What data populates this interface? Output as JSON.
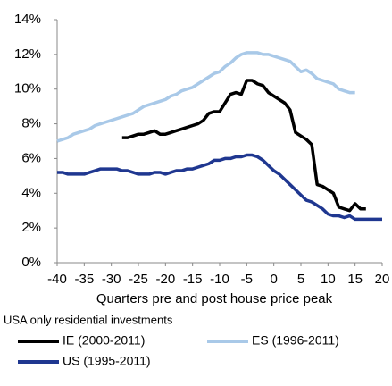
{
  "chart_data": {
    "type": "line",
    "xlabel": "Quarters pre and post house price peak",
    "note": "USA only residential investments",
    "x": [
      -40,
      -39,
      -38,
      -37,
      -36,
      -35,
      -34,
      -33,
      -32,
      -31,
      -30,
      -29,
      -28,
      -27,
      -26,
      -25,
      -24,
      -23,
      -22,
      -21,
      -20,
      -19,
      -18,
      -17,
      -16,
      -15,
      -14,
      -13,
      -12,
      -11,
      -10,
      -9,
      -8,
      -7,
      -6,
      -5,
      -4,
      -3,
      -2,
      -1,
      0,
      1,
      2,
      3,
      4,
      5,
      6,
      7,
      8,
      9,
      10,
      11,
      12,
      13,
      14,
      15,
      16,
      17,
      18,
      19,
      20
    ],
    "series": [
      {
        "name": "IE (2000-2011)",
        "color": "#000000",
        "values": [
          null,
          null,
          null,
          null,
          null,
          null,
          null,
          null,
          null,
          null,
          null,
          null,
          7.2,
          7.2,
          7.3,
          7.4,
          7.4,
          7.5,
          7.6,
          7.4,
          7.4,
          7.5,
          7.6,
          7.7,
          7.8,
          7.9,
          8.0,
          8.2,
          8.6,
          8.7,
          8.7,
          9.2,
          9.7,
          9.8,
          9.7,
          10.5,
          10.5,
          10.3,
          10.2,
          9.8,
          9.6,
          9.4,
          9.2,
          8.8,
          7.5,
          7.3,
          7.1,
          6.8,
          4.5,
          4.4,
          4.2,
          4.0,
          3.2,
          3.1,
          3.0,
          3.4,
          3.1,
          3.1,
          null,
          null,
          null
        ]
      },
      {
        "name": "ES (1996-2011)",
        "color": "#a9c9e8",
        "values": [
          7.0,
          7.1,
          7.2,
          7.4,
          7.5,
          7.6,
          7.7,
          7.9,
          8.0,
          8.1,
          8.2,
          8.3,
          8.4,
          8.5,
          8.6,
          8.8,
          9.0,
          9.1,
          9.2,
          9.3,
          9.4,
          9.6,
          9.7,
          9.9,
          10.0,
          10.1,
          10.3,
          10.5,
          10.7,
          10.9,
          11.0,
          11.3,
          11.5,
          11.8,
          12.0,
          12.1,
          12.1,
          12.1,
          12.0,
          12.0,
          11.9,
          11.8,
          11.7,
          11.6,
          11.3,
          11.0,
          11.1,
          10.9,
          10.6,
          10.5,
          10.4,
          10.3,
          10.0,
          9.9,
          9.8,
          9.8,
          null,
          null,
          null,
          null,
          null
        ]
      },
      {
        "name": "US (1995-2011)",
        "color": "#1f3790",
        "values": [
          5.2,
          5.2,
          5.1,
          5.1,
          5.1,
          5.1,
          5.2,
          5.3,
          5.4,
          5.4,
          5.4,
          5.4,
          5.3,
          5.3,
          5.2,
          5.1,
          5.1,
          5.1,
          5.2,
          5.2,
          5.1,
          5.2,
          5.3,
          5.3,
          5.4,
          5.4,
          5.5,
          5.6,
          5.7,
          5.9,
          5.9,
          6.0,
          6.0,
          6.1,
          6.1,
          6.2,
          6.2,
          6.1,
          5.9,
          5.6,
          5.3,
          5.1,
          4.8,
          4.5,
          4.2,
          3.9,
          3.6,
          3.5,
          3.3,
          3.1,
          2.8,
          2.7,
          2.7,
          2.6,
          2.7,
          2.5,
          2.5,
          2.5,
          2.5,
          2.5,
          2.5
        ]
      }
    ],
    "xlim": [
      -40,
      20
    ],
    "xticks": [
      -40,
      -35,
      -30,
      -25,
      -20,
      -15,
      -10,
      -5,
      0,
      5,
      10,
      15,
      20
    ],
    "ylim": [
      0,
      14
    ],
    "yticks": [
      {
        "value": 0,
        "label": "0%"
      },
      {
        "value": 2,
        "label": "2%"
      },
      {
        "value": 4,
        "label": "4%"
      },
      {
        "value": 6,
        "label": "6%"
      },
      {
        "value": 8,
        "label": "8%"
      },
      {
        "value": 10,
        "label": "10%"
      },
      {
        "value": 12,
        "label": "12%"
      },
      {
        "value": 14,
        "label": "14%"
      }
    ],
    "grid": false
  }
}
